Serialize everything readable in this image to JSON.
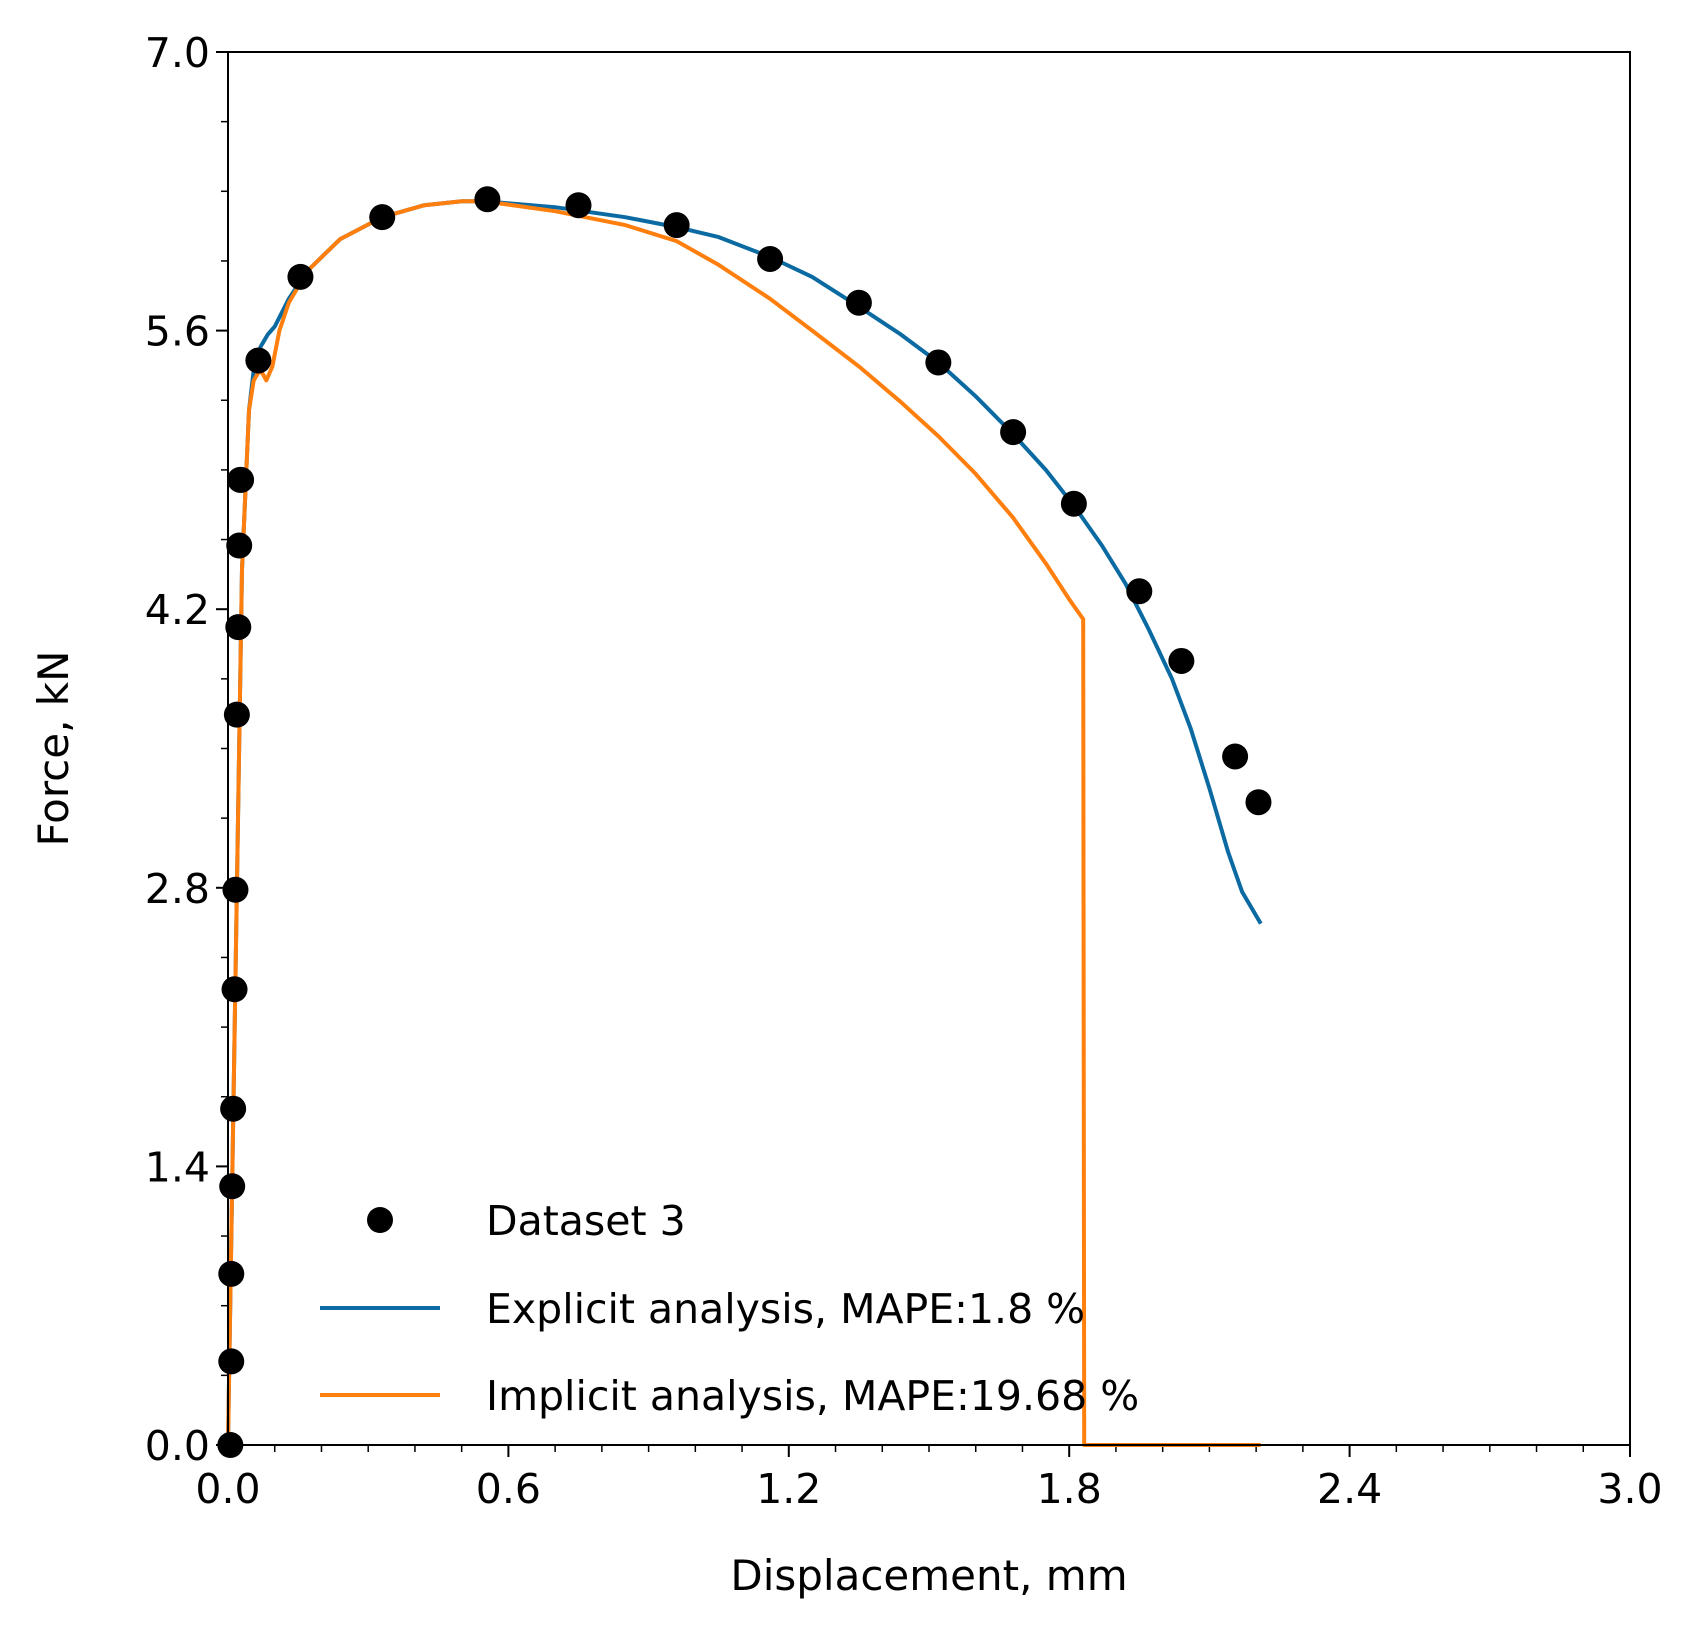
{
  "chart_data": {
    "type": "line",
    "title": "",
    "xlabel": "Displacement, mm",
    "ylabel": "Force, kN",
    "xlim": [
      0.0,
      3.0
    ],
    "ylim": [
      0.0,
      7.0
    ],
    "xticks": [
      "0.0",
      "0.6",
      "1.2",
      "1.8",
      "2.4",
      "3.0"
    ],
    "yticks": [
      "0.0",
      "1.4",
      "2.8",
      "4.2",
      "5.6",
      "7.0"
    ],
    "grid": false,
    "legend_position": "lower-left",
    "series": [
      {
        "name": "Dataset 3",
        "kind": "scatter",
        "color": "#000000",
        "x": [
          0.005,
          0.007,
          0.007,
          0.009,
          0.011,
          0.014,
          0.016,
          0.019,
          0.022,
          0.024,
          0.026,
          0.028,
          0.065,
          0.155,
          0.33,
          0.555,
          0.75,
          0.96,
          1.16,
          1.35,
          1.52,
          1.68,
          1.81,
          1.95,
          2.04,
          2.155,
          2.205
        ],
        "y": [
          0.0,
          0.42,
          0.86,
          1.3,
          1.69,
          2.29,
          2.79,
          3.67,
          4.11,
          4.52,
          4.85,
          4.85,
          5.45,
          5.87,
          6.17,
          6.26,
          6.23,
          6.13,
          5.96,
          5.74,
          5.44,
          5.09,
          4.73,
          4.29,
          3.94,
          3.46,
          3.23
        ]
      },
      {
        "name": "Explicit analysis, MAPE:1.8 %",
        "kind": "line",
        "color": "#0a6aa1",
        "x": [
          0.0,
          0.015,
          0.03,
          0.045,
          0.055,
          0.07,
          0.085,
          0.1,
          0.13,
          0.17,
          0.24,
          0.33,
          0.42,
          0.5,
          0.55,
          0.7,
          0.85,
          0.96,
          1.05,
          1.16,
          1.25,
          1.35,
          1.44,
          1.52,
          1.6,
          1.68,
          1.75,
          1.81,
          1.87,
          1.92,
          1.97,
          2.02,
          2.06,
          2.1,
          2.14,
          2.17,
          2.21
        ],
        "y": [
          0.0,
          2.2,
          4.4,
          5.2,
          5.4,
          5.52,
          5.58,
          5.62,
          5.76,
          5.9,
          6.06,
          6.17,
          6.23,
          6.25,
          6.25,
          6.22,
          6.17,
          6.12,
          6.07,
          5.97,
          5.87,
          5.72,
          5.58,
          5.44,
          5.27,
          5.08,
          4.9,
          4.72,
          4.52,
          4.33,
          4.1,
          3.85,
          3.6,
          3.3,
          2.98,
          2.78,
          2.62
        ]
      },
      {
        "name": "Implicit analysis, MAPE:19.68 %",
        "kind": "line",
        "color": "#ff7f0e",
        "x": [
          0.0,
          0.015,
          0.03,
          0.045,
          0.055,
          0.068,
          0.075,
          0.082,
          0.095,
          0.11,
          0.13,
          0.17,
          0.24,
          0.33,
          0.42,
          0.5,
          0.55,
          0.7,
          0.85,
          0.96,
          1.05,
          1.16,
          1.25,
          1.35,
          1.44,
          1.52,
          1.6,
          1.68,
          1.75,
          1.8,
          1.83,
          1.832,
          1.84,
          1.9,
          2.0,
          2.1,
          2.21
        ],
        "y": [
          0.0,
          2.2,
          4.4,
          5.2,
          5.35,
          5.4,
          5.38,
          5.35,
          5.42,
          5.6,
          5.74,
          5.9,
          6.06,
          6.17,
          6.23,
          6.25,
          6.25,
          6.2,
          6.13,
          6.05,
          5.93,
          5.76,
          5.6,
          5.42,
          5.24,
          5.07,
          4.88,
          4.66,
          4.43,
          4.25,
          4.15,
          0.0,
          0.0,
          0.0,
          0.0,
          0.0,
          0.0
        ]
      }
    ]
  }
}
